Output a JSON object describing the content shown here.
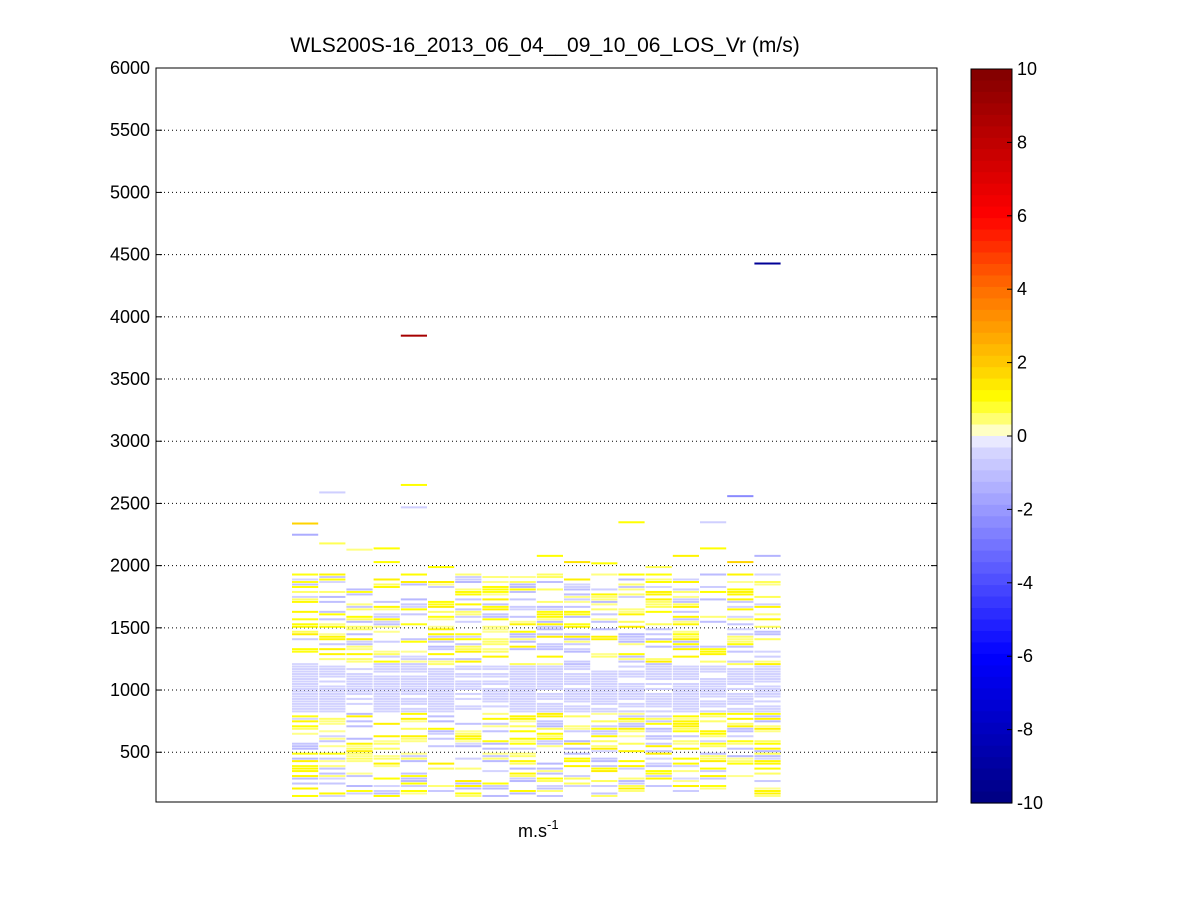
{
  "chart_data": {
    "type": "heatmap",
    "title": "WLS200S-16_2013_06_04__09_10_06_LOS_Vr (m/s)",
    "xlabel": "m.s",
    "xlabel_superscript": "-1",
    "ylabel": "",
    "ylim": [
      100,
      6000
    ],
    "yticks": [
      500,
      1000,
      1500,
      2000,
      2500,
      3000,
      3500,
      4000,
      4500,
      5000,
      5500,
      6000
    ],
    "ytick_labels": [
      "500",
      "1000",
      "1500",
      "2000",
      "2500",
      "3000",
      "3500",
      "4000",
      "4500",
      "5000",
      "5500",
      "6000"
    ],
    "grid": "horizontal dotted",
    "colorbar": {
      "range": [
        -10,
        10
      ],
      "ticks": [
        10,
        8,
        6,
        4,
        2,
        0,
        -2,
        -4,
        -6,
        -8,
        -10
      ],
      "tick_labels": [
        "10",
        "8",
        "6",
        "4",
        "2",
        "0",
        "-2",
        "-4",
        "-6",
        "-8",
        "-10"
      ],
      "colors": {
        "max": "#800000",
        "high": "#ff0000",
        "mid_high": "#ffff00",
        "zero": "#ffffff",
        "mid_low": "#ccccff",
        "low": "#0000ff",
        "min": "#000080"
      }
    },
    "columns": 18,
    "cells": [
      {
        "col": 0,
        "alt": 2340,
        "v": 1.8
      },
      {
        "col": 0,
        "alt": 2250,
        "v": -1.5
      },
      {
        "col": 1,
        "alt": 2590,
        "v": -0.6
      },
      {
        "col": 1,
        "alt": 2180,
        "v": 0.6
      },
      {
        "col": 2,
        "alt": 2130,
        "v": 0.4
      },
      {
        "col": 3,
        "alt": 2140,
        "v": 1.0
      },
      {
        "col": 3,
        "alt": 2030,
        "v": 1.0
      },
      {
        "col": 4,
        "alt": 3850,
        "v": 8.8
      },
      {
        "col": 4,
        "alt": 2650,
        "v": 1.0
      },
      {
        "col": 4,
        "alt": 2470,
        "v": -0.6
      },
      {
        "col": 5,
        "alt": 1990,
        "v": 1.0
      },
      {
        "col": 9,
        "alt": 2080,
        "v": 1.0
      },
      {
        "col": 10,
        "alt": 2030,
        "v": 1.5
      },
      {
        "col": 11,
        "alt": 2020,
        "v": 1.0
      },
      {
        "col": 12,
        "alt": 2350,
        "v": 1.0
      },
      {
        "col": 13,
        "alt": 1990,
        "v": 0.6
      },
      {
        "col": 14,
        "alt": 2080,
        "v": 1.2
      },
      {
        "col": 15,
        "alt": 2350,
        "v": -0.6
      },
      {
        "col": 15,
        "alt": 2140,
        "v": 1.0
      },
      {
        "col": 16,
        "alt": 2560,
        "v": -2.4
      },
      {
        "col": 16,
        "alt": 2030,
        "v": 1.8
      },
      {
        "col": 17,
        "alt": 4430,
        "v": -9.3
      },
      {
        "col": 17,
        "alt": 2080,
        "v": -1.3
      }
    ]
  }
}
